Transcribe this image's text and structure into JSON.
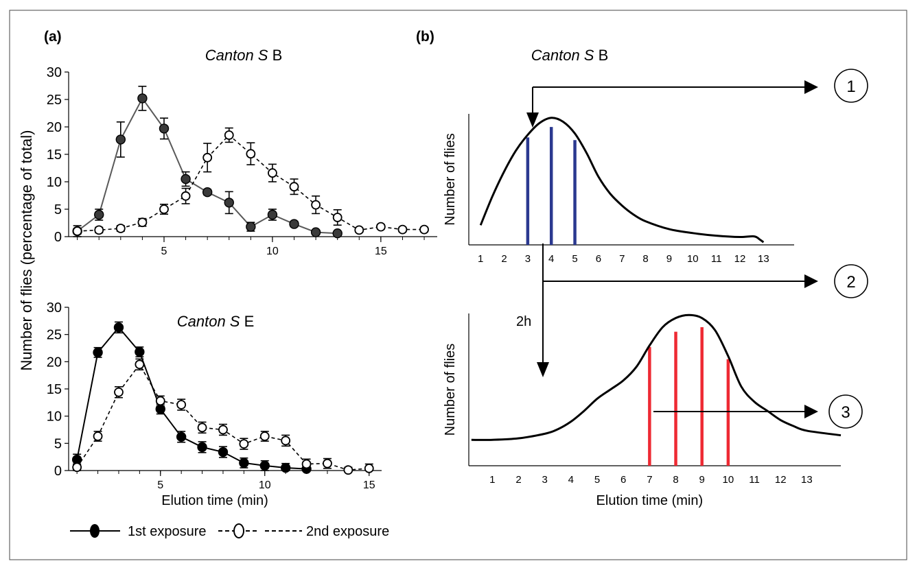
{
  "panel_a": {
    "label": "(a)",
    "shared_ylabel": "Number of flies (percentage of total)",
    "legend": {
      "first": "1st exposure",
      "second": "2nd exposure"
    }
  },
  "panel_b": {
    "label": "(b)",
    "line_2h": "2h",
    "circles": [
      "1",
      "2",
      "3"
    ]
  },
  "chart_data": [
    {
      "id": "a_top",
      "type": "line",
      "title_italic": "Canton S",
      "title_rest": " B",
      "xlabel": "",
      "ylabel": "",
      "xlim": [
        0.6,
        17.6
      ],
      "ylim": [
        0,
        30
      ],
      "xticks": [
        5,
        10,
        15
      ],
      "yticks": [
        0,
        5,
        10,
        15,
        20,
        25,
        30
      ],
      "series": [
        {
          "name": "1st exposure",
          "color": "#595959",
          "x": [
            1,
            2,
            3,
            4,
            5,
            6,
            7,
            8,
            9,
            10,
            11,
            12,
            13
          ],
          "y": [
            1,
            4,
            17.7,
            25.2,
            19.7,
            10.5,
            8.1,
            6.2,
            1.8,
            4,
            2.3,
            0.8,
            0.6
          ],
          "err": [
            1,
            1,
            3.2,
            2.2,
            1.9,
            1.3,
            0.5,
            2,
            0.8,
            1,
            0.5,
            0.4,
            0.3
          ]
        },
        {
          "name": "2nd exposure",
          "color": "#000000",
          "x": [
            1,
            2,
            3,
            4,
            5,
            6,
            7,
            8,
            9,
            10,
            11,
            12,
            13,
            14,
            15,
            16,
            17
          ],
          "y": [
            1,
            1.2,
            1.5,
            2.6,
            5,
            7.4,
            14.4,
            18.5,
            15.1,
            11.6,
            9.1,
            5.8,
            3.5,
            1.2,
            1.8,
            1.3,
            1.3
          ],
          "err": [
            0.5,
            0.5,
            0.5,
            0.7,
            0.9,
            1.4,
            2.6,
            1.3,
            2,
            1.6,
            1.4,
            1.6,
            1.4,
            0.4,
            0.4,
            0.4,
            0.4
          ]
        }
      ]
    },
    {
      "id": "a_bottom",
      "type": "line",
      "title_italic": "Canton S",
      "title_rest": " E",
      "xlabel": "Elution time (min)",
      "ylabel": "",
      "xlim": [
        0.6,
        15.6
      ],
      "ylim": [
        0,
        30
      ],
      "xticks": [
        5,
        10,
        15
      ],
      "yticks": [
        0,
        5,
        10,
        15,
        20,
        25,
        30
      ],
      "series": [
        {
          "name": "1st exposure",
          "color": "#000000",
          "x": [
            1,
            2,
            3,
            4,
            5,
            6,
            7,
            8,
            9,
            10,
            11,
            12
          ],
          "y": [
            2,
            21.7,
            26.3,
            21.8,
            11.3,
            6.2,
            4.3,
            3.4,
            1.4,
            0.9,
            0.5,
            0.3
          ],
          "err": [
            1,
            0.9,
            1,
            0.9,
            0.9,
            1,
            1,
            1,
            0.9,
            0.9,
            0.8,
            0.5
          ]
        },
        {
          "name": "2nd exposure",
          "color": "#000000",
          "x": [
            1,
            2,
            3,
            4,
            5,
            6,
            7,
            8,
            9,
            10,
            11,
            12,
            13,
            14,
            15
          ],
          "y": [
            0.6,
            6.3,
            14.4,
            19.5,
            12.8,
            12.1,
            7.9,
            7.5,
            4.9,
            6.3,
            5.5,
            1.2,
            1.3,
            0.1,
            0.4
          ],
          "err": [
            0.6,
            0.9,
            1,
            1,
            0.9,
            1,
            1,
            1,
            1,
            0.9,
            1,
            0.9,
            0.9,
            0.5,
            0.8
          ]
        }
      ]
    },
    {
      "id": "b_top",
      "type": "line",
      "title_italic": "Canton S",
      "title_rest": " B",
      "ylabel": "Number of flies",
      "xlabel": "",
      "xlim": [
        0.5,
        14.3
      ],
      "ylim": [
        0,
        100
      ],
      "xticks": [
        1,
        2,
        3,
        4,
        5,
        6,
        7,
        8,
        9,
        10,
        11,
        12,
        13
      ],
      "curve": {
        "x": [
          1,
          1.5,
          2,
          2.5,
          3,
          3.5,
          4,
          4.5,
          5,
          5.5,
          6,
          6.5,
          7,
          7.5,
          8,
          9,
          10,
          11,
          12,
          12.6,
          12.85,
          13
        ],
        "y": [
          15,
          37,
          56,
          72,
          84,
          93,
          97,
          94,
          85,
          70,
          52,
          39,
          30,
          23,
          18,
          12,
          9,
          7,
          6,
          6.5,
          4,
          2
        ],
        "color": "#000000"
      },
      "bars": {
        "color": "#2b3990",
        "x": [
          3,
          4,
          5
        ],
        "y": [
          82,
          90,
          80
        ]
      }
    },
    {
      "id": "b_bottom",
      "type": "line",
      "title": "",
      "ylabel": "Number of flies",
      "xlabel": "Elution time (min)",
      "xlim": [
        0.1,
        14.3
      ],
      "ylim": [
        0,
        100
      ],
      "xticks": [
        1,
        2,
        3,
        4,
        5,
        6,
        7,
        8,
        9,
        10,
        11,
        12,
        13
      ],
      "curve": {
        "x": [
          0.2,
          1,
          2,
          3,
          3.5,
          4,
          4.5,
          5,
          5.5,
          6,
          6.5,
          7,
          7.5,
          8,
          8.5,
          9,
          9.5,
          10,
          10.5,
          11,
          11.5,
          12,
          12.5,
          13,
          14.3
        ],
        "y": [
          17,
          17,
          18,
          21,
          24,
          29,
          36,
          44,
          50,
          56,
          65,
          79,
          91,
          97,
          99,
          97,
          89,
          72,
          52,
          42,
          36,
          30,
          26,
          23,
          20
        ],
        "color": "#000000"
      },
      "bars": {
        "color": "#ee2a33",
        "x": [
          7,
          8,
          9,
          10
        ],
        "y": [
          78,
          88,
          91,
          70
        ]
      }
    }
  ]
}
